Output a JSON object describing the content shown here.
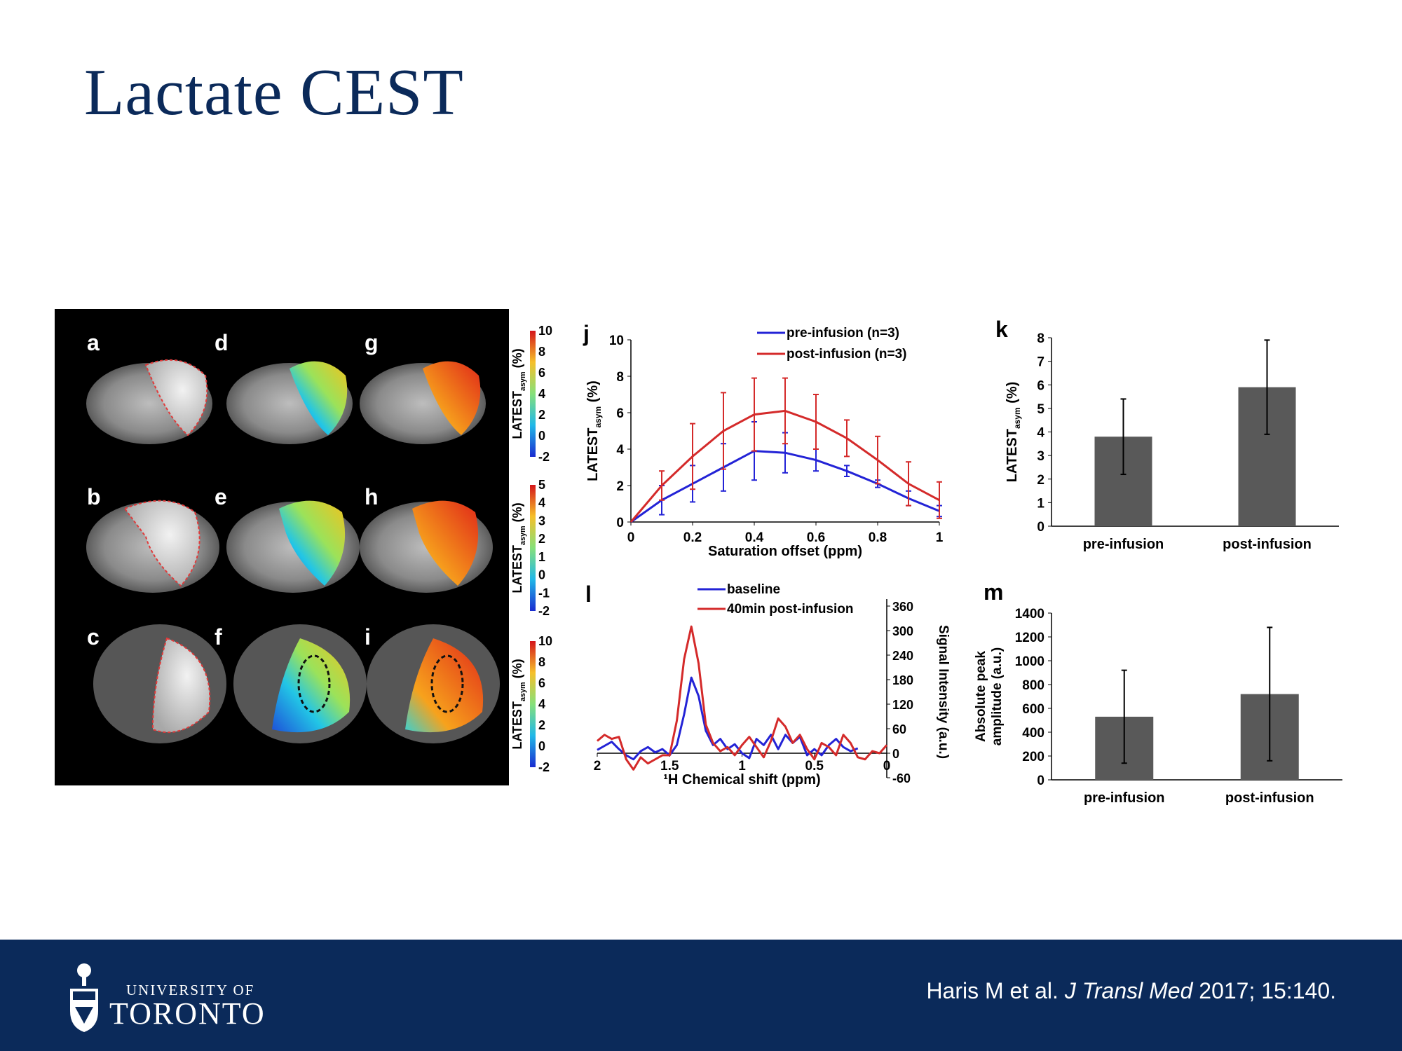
{
  "slide": {
    "title": "Lactate CEST"
  },
  "mri_panel": {
    "labels": [
      "a",
      "d",
      "g",
      "b",
      "e",
      "h",
      "c",
      "f",
      "i"
    ],
    "colorbars": [
      {
        "label": "LATEST",
        "sub": "asym",
        "unit": " (%)",
        "ticks": [
          "10",
          "8",
          "6",
          "4",
          "2",
          "0",
          "-2"
        ]
      },
      {
        "label": "LATEST",
        "sub": "asym",
        "unit": " (%)",
        "ticks": [
          "5",
          "4",
          "3",
          "2",
          "1",
          "0",
          "-1",
          "-2"
        ]
      },
      {
        "label": "LATEST",
        "sub": "asym",
        "unit": " (%)",
        "ticks": [
          "10",
          "8",
          "6",
          "4",
          "2",
          "0",
          "-2"
        ]
      }
    ]
  },
  "chart_data": [
    {
      "panel": "j",
      "type": "line",
      "x": [
        0,
        0.1,
        0.2,
        0.3,
        0.4,
        0.5,
        0.6,
        0.7,
        0.8,
        0.9,
        1.0
      ],
      "series": [
        {
          "name": "pre-infusion (n=3)",
          "color": "#2323d6",
          "values": [
            0,
            1.2,
            2.1,
            3.0,
            3.9,
            3.8,
            3.4,
            2.8,
            2.1,
            1.3,
            0.6
          ],
          "errors": [
            0,
            0.8,
            1.0,
            1.3,
            1.6,
            1.1,
            0.6,
            0.3,
            0.2,
            0.4,
            0.3
          ]
        },
        {
          "name": "post-infusion (n=3)",
          "color": "#d42a2a",
          "values": [
            0,
            2.0,
            3.6,
            5.0,
            5.9,
            6.1,
            5.5,
            4.6,
            3.4,
            2.1,
            1.2
          ],
          "errors": [
            0,
            0.8,
            1.8,
            2.1,
            2.0,
            1.8,
            1.5,
            1.0,
            1.3,
            1.2,
            1.0
          ]
        }
      ],
      "xlabel": "Saturation offset (ppm)",
      "ylabel": "LATEST",
      "ylabel_sub": "asym",
      "ylabel_unit": " (%)",
      "xticks": [
        "0",
        "0.2",
        "0.4",
        "0.6",
        "0.8",
        "1"
      ],
      "yticks": [
        "0",
        "2",
        "4",
        "6",
        "8",
        "10"
      ],
      "xlim": [
        0,
        1
      ],
      "ylim": [
        0,
        10
      ],
      "legend": "top-right"
    },
    {
      "panel": "k",
      "type": "bar",
      "categories": [
        "pre-infusion",
        "post-infusion"
      ],
      "values": [
        3.8,
        5.9
      ],
      "errors": [
        1.6,
        2.0
      ],
      "ylabel": "LATEST",
      "ylabel_sub": "asym",
      "ylabel_unit": " (%)",
      "yticks": [
        "0",
        "1",
        "2",
        "3",
        "4",
        "5",
        "6",
        "7",
        "8"
      ],
      "ylim": [
        0,
        8
      ],
      "color": "#595959"
    },
    {
      "panel": "l",
      "type": "line",
      "xlim": [
        2,
        0
      ],
      "ylim": [
        -60,
        360
      ],
      "xticks": [
        "2",
        "1.5",
        "1",
        "0.5",
        "0"
      ],
      "yticks": [
        "-60",
        "0",
        "60",
        "120",
        "180",
        "240",
        "300",
        "360"
      ],
      "xlabel": "¹H Chemical shift (ppm)",
      "ylabel": "Signal Intensity (a.u.)",
      "y_axis_side": "right",
      "series": [
        {
          "name": "baseline",
          "color": "#2323d6",
          "x": [
            2,
            1.95,
            1.9,
            1.85,
            1.8,
            1.75,
            1.7,
            1.65,
            1.6,
            1.55,
            1.5,
            1.45,
            1.4,
            1.35,
            1.3,
            1.25,
            1.2,
            1.15,
            1.1,
            1.05,
            1.0,
            0.95,
            0.9,
            0.85,
            0.8,
            0.75,
            0.7,
            0.65,
            0.6,
            0.55,
            0.5,
            0.45,
            0.4,
            0.35,
            0.3,
            0.25,
            0.2
          ],
          "values": [
            8,
            18,
            28,
            10,
            -5,
            -15,
            5,
            15,
            2,
            10,
            -5,
            20,
            95,
            185,
            140,
            55,
            20,
            35,
            10,
            22,
            0,
            -12,
            35,
            20,
            45,
            10,
            45,
            25,
            40,
            -5,
            10,
            -5,
            20,
            35,
            15,
            5,
            12
          ]
        },
        {
          "name": "40min post-infusion",
          "color": "#d42a2a",
          "x": [
            2,
            1.95,
            1.9,
            1.85,
            1.8,
            1.75,
            1.7,
            1.65,
            1.6,
            1.55,
            1.5,
            1.45,
            1.4,
            1.35,
            1.3,
            1.25,
            1.2,
            1.15,
            1.1,
            1.05,
            1.0,
            0.95,
            0.9,
            0.85,
            0.8,
            0.75,
            0.7,
            0.65,
            0.6,
            0.55,
            0.5,
            0.45,
            0.4,
            0.35,
            0.3,
            0.25,
            0.2,
            0.15,
            0.1,
            0.05,
            0
          ],
          "values": [
            30,
            45,
            35,
            40,
            -15,
            -40,
            -10,
            -25,
            -15,
            -5,
            -5,
            80,
            230,
            310,
            220,
            70,
            25,
            5,
            15,
            -5,
            20,
            40,
            15,
            -10,
            30,
            85,
            65,
            25,
            45,
            10,
            -15,
            25,
            15,
            -5,
            45,
            25,
            -10,
            -15,
            5,
            0,
            20
          ]
        }
      ],
      "legend": "top-left"
    },
    {
      "panel": "m",
      "type": "bar",
      "categories": [
        "pre-infusion",
        "post-infusion"
      ],
      "values": [
        530,
        720
      ],
      "errors": [
        390,
        560
      ],
      "ylabel": "Absolute peak amplitude (a.u.)",
      "yticks": [
        "0",
        "200",
        "400",
        "600",
        "800",
        "1000",
        "1200",
        "1400"
      ],
      "ylim": [
        0,
        1400
      ],
      "color": "#595959"
    }
  ],
  "footer": {
    "logo_top": "UNIVERSITY OF",
    "logo_bottom": "TORONTO",
    "citation_authors": "Haris M et al. ",
    "citation_journal": "J Transl Med",
    "citation_rest": " 2017; 15:140."
  }
}
